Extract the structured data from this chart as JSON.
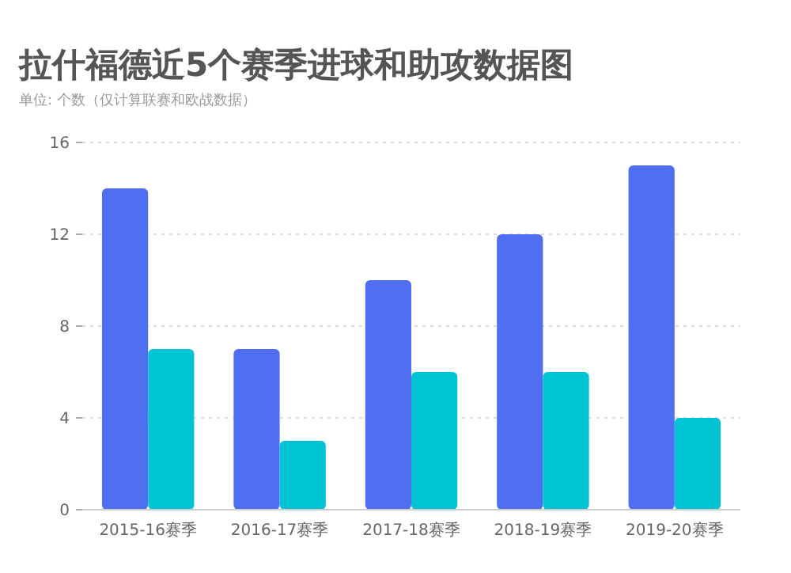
{
  "chart_data": {
    "type": "bar",
    "title": "拉什福德近5个赛季进球和助攻数据图",
    "subtitle": "单位: 个数（仅计算联赛和欧战数据）",
    "categories": [
      "2015-16赛季",
      "2016-17赛季",
      "2017-18赛季",
      "2018-19赛季",
      "2019-20赛季"
    ],
    "series": [
      {
        "color": "#4f6ef0",
        "values": [
          14,
          7,
          10,
          12,
          15
        ]
      },
      {
        "color": "#00c3d3",
        "values": [
          7,
          3,
          6,
          6,
          4
        ]
      }
    ],
    "ylim": [
      0,
      16
    ],
    "yticks": [
      0,
      4,
      8,
      12,
      16
    ],
    "grid": "y"
  }
}
